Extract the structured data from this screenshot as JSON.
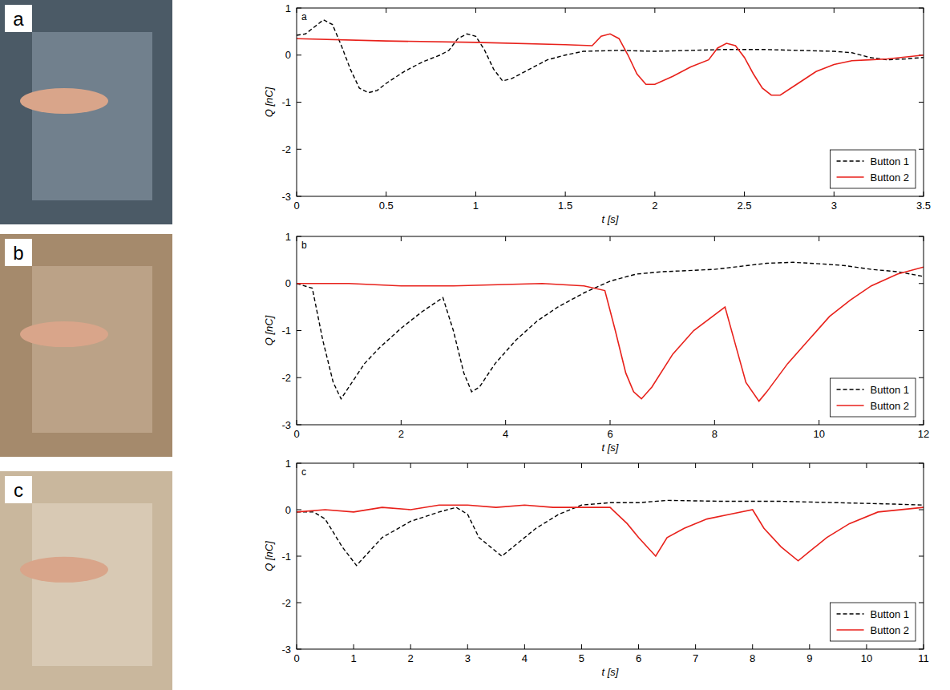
{
  "photos": [
    {
      "label": "a"
    },
    {
      "label": "b"
    },
    {
      "label": "c"
    }
  ],
  "chart_data": [
    {
      "type": "line",
      "title": "a",
      "x_label": "t [s]",
      "y_label": "Q [nC]",
      "xlim": [
        0,
        3.5
      ],
      "xticks": [
        0,
        0.5,
        1,
        1.5,
        2,
        2.5,
        3,
        3.5
      ],
      "ylim": [
        -3,
        1
      ],
      "yticks": [
        -3,
        -2,
        -1,
        0,
        1
      ],
      "grid": false,
      "legend": "lower right",
      "series": [
        {
          "name": "Button 1",
          "color": "#000000",
          "line_style": "dashed",
          "x": [
            0,
            0.05,
            0.1,
            0.15,
            0.2,
            0.25,
            0.3,
            0.35,
            0.4,
            0.45,
            0.5,
            0.6,
            0.7,
            0.8,
            0.85,
            0.9,
            0.95,
            1.0,
            1.05,
            1.1,
            1.15,
            1.2,
            1.3,
            1.4,
            1.5,
            1.6,
            1.8,
            2.0,
            2.2,
            2.4,
            2.6,
            2.8,
            3.0,
            3.1,
            3.2,
            3.3,
            3.4,
            3.5
          ],
          "values": [
            0.42,
            0.45,
            0.6,
            0.75,
            0.65,
            0.2,
            -0.3,
            -0.7,
            -0.8,
            -0.75,
            -0.6,
            -0.35,
            -0.15,
            0.0,
            0.1,
            0.35,
            0.45,
            0.4,
            0.1,
            -0.3,
            -0.55,
            -0.5,
            -0.3,
            -0.1,
            0.0,
            0.08,
            0.1,
            0.08,
            0.1,
            0.12,
            0.12,
            0.1,
            0.08,
            0.05,
            -0.05,
            -0.1,
            -0.08,
            -0.05
          ]
        },
        {
          "name": "Button 2",
          "color": "#e8211b",
          "line_style": "solid",
          "x": [
            0,
            0.5,
            1.0,
            1.5,
            1.65,
            1.7,
            1.75,
            1.8,
            1.85,
            1.9,
            1.95,
            2.0,
            2.1,
            2.2,
            2.3,
            2.35,
            2.4,
            2.45,
            2.5,
            2.55,
            2.6,
            2.65,
            2.7,
            2.8,
            2.9,
            3.0,
            3.1,
            3.2,
            3.3,
            3.5
          ],
          "values": [
            0.35,
            0.3,
            0.27,
            0.22,
            0.2,
            0.4,
            0.45,
            0.35,
            0.0,
            -0.4,
            -0.62,
            -0.62,
            -0.45,
            -0.25,
            -0.1,
            0.15,
            0.25,
            0.2,
            -0.05,
            -0.4,
            -0.7,
            -0.85,
            -0.85,
            -0.6,
            -0.35,
            -0.2,
            -0.12,
            -0.1,
            -0.08,
            0.0
          ]
        }
      ]
    },
    {
      "type": "line",
      "title": "b",
      "x_label": "t [s]",
      "y_label": "Q [nC]",
      "xlim": [
        0,
        12
      ],
      "xticks": [
        0,
        2,
        4,
        6,
        8,
        10,
        12
      ],
      "ylim": [
        -3,
        1
      ],
      "yticks": [
        -3,
        -2,
        -1,
        0,
        1
      ],
      "grid": false,
      "legend": "lower right",
      "series": [
        {
          "name": "Button 1",
          "color": "#000000",
          "line_style": "dashed",
          "x": [
            0,
            0.3,
            0.5,
            0.7,
            0.85,
            1.0,
            1.3,
            1.6,
            2.0,
            2.4,
            2.8,
            3.0,
            3.2,
            3.35,
            3.5,
            3.8,
            4.2,
            4.6,
            5.0,
            5.5,
            6.0,
            6.5,
            7.0,
            8.0,
            9.0,
            9.5,
            10.0,
            10.5,
            11.0,
            11.5,
            12.0
          ],
          "values": [
            0,
            -0.1,
            -1.2,
            -2.1,
            -2.45,
            -2.2,
            -1.7,
            -1.35,
            -0.95,
            -0.6,
            -0.3,
            -1.0,
            -1.9,
            -2.3,
            -2.2,
            -1.7,
            -1.2,
            -0.8,
            -0.5,
            -0.2,
            0.05,
            0.2,
            0.25,
            0.3,
            0.43,
            0.45,
            0.42,
            0.38,
            0.3,
            0.25,
            0.15
          ]
        },
        {
          "name": "Button 2",
          "color": "#e8211b",
          "line_style": "solid",
          "x": [
            0,
            1,
            2,
            3,
            4.7,
            5.5,
            5.9,
            6.1,
            6.3,
            6.45,
            6.6,
            6.8,
            7.2,
            7.6,
            8.2,
            8.4,
            8.6,
            8.85,
            9.0,
            9.4,
            9.8,
            10.2,
            10.6,
            11.0,
            11.5,
            12.0
          ],
          "values": [
            0,
            0,
            -0.05,
            -0.05,
            0,
            -0.05,
            -0.15,
            -1.0,
            -1.9,
            -2.3,
            -2.45,
            -2.2,
            -1.5,
            -1.0,
            -0.5,
            -1.3,
            -2.1,
            -2.5,
            -2.3,
            -1.7,
            -1.2,
            -0.7,
            -0.35,
            -0.05,
            0.2,
            0.35
          ]
        }
      ]
    },
    {
      "type": "line",
      "title": "c",
      "x_label": "t [s]",
      "y_label": "Q [nC]",
      "xlim": [
        0,
        11
      ],
      "xticks": [
        0,
        1,
        2,
        3,
        4,
        5,
        6,
        7,
        8,
        9,
        10,
        11
      ],
      "ylim": [
        -3,
        1
      ],
      "yticks": [
        -3,
        -2,
        -1,
        0,
        1
      ],
      "grid": false,
      "legend": "lower right",
      "series": [
        {
          "name": "Button 1",
          "color": "#000000",
          "line_style": "dashed",
          "x": [
            0,
            0.3,
            0.5,
            0.8,
            1.05,
            1.2,
            1.5,
            2.0,
            2.5,
            2.8,
            3.0,
            3.2,
            3.6,
            3.8,
            4.2,
            4.6,
            5.0,
            5.5,
            6.0,
            6.5,
            7.5,
            8.5,
            9.5,
            10.5,
            11.0
          ],
          "values": [
            -0.05,
            -0.05,
            -0.2,
            -0.8,
            -1.2,
            -1.0,
            -0.6,
            -0.25,
            -0.05,
            0.05,
            -0.1,
            -0.6,
            -1.0,
            -0.8,
            -0.4,
            -0.1,
            0.1,
            0.15,
            0.15,
            0.2,
            0.18,
            0.18,
            0.15,
            0.12,
            0.1
          ]
        },
        {
          "name": "Button 2",
          "color": "#e8211b",
          "line_style": "solid",
          "x": [
            0,
            0.5,
            1,
            1.5,
            2,
            2.5,
            3,
            3.5,
            4,
            4.5,
            5,
            5.5,
            5.8,
            6.0,
            6.3,
            6.5,
            6.8,
            7.2,
            7.6,
            8.0,
            8.2,
            8.5,
            8.8,
            9.0,
            9.3,
            9.7,
            10.2,
            11.0
          ],
          "values": [
            -0.05,
            0.0,
            -0.05,
            0.05,
            0.0,
            0.1,
            0.1,
            0.05,
            0.1,
            0.05,
            0.05,
            0.05,
            -0.3,
            -0.6,
            -1.0,
            -0.6,
            -0.4,
            -0.2,
            -0.1,
            0.0,
            -0.4,
            -0.8,
            -1.1,
            -0.9,
            -0.6,
            -0.3,
            -0.05,
            0.05
          ]
        }
      ]
    }
  ]
}
